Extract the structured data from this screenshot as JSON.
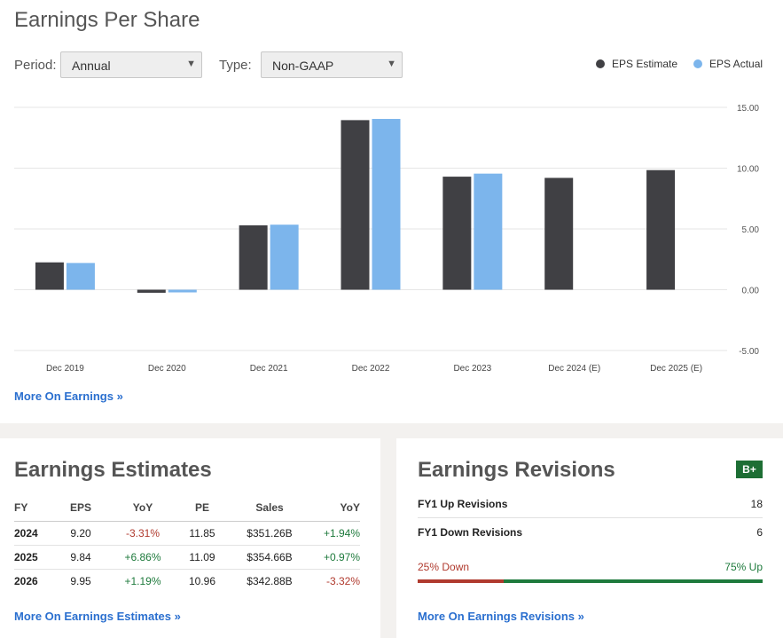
{
  "earnings_per_share": {
    "title": "Earnings Per Share",
    "period_label": "Period:",
    "period_value": "Annual",
    "type_label": "Type:",
    "type_value": "Non-GAAP",
    "legend": [
      {
        "name": "EPS Estimate",
        "color": "#404044"
      },
      {
        "name": "EPS Actual",
        "color": "#7cb5ec"
      }
    ],
    "more_link": "More On Earnings »"
  },
  "chart_data": {
    "type": "bar",
    "title": "",
    "xlabel": "",
    "ylabel": "",
    "categories": [
      "Dec 2019",
      "Dec 2020",
      "Dec 2021",
      "Dec 2022",
      "Dec 2023",
      "Dec 2024 (E)",
      "Dec 2025 (E)"
    ],
    "series": [
      {
        "name": "EPS Estimate",
        "color": "#404044",
        "values": [
          2.25,
          -0.25,
          5.3,
          13.95,
          9.3,
          9.2,
          9.84
        ]
      },
      {
        "name": "EPS Actual",
        "color": "#7cb5ec",
        "values": [
          2.2,
          -0.22,
          5.35,
          14.05,
          9.55,
          null,
          null
        ]
      }
    ],
    "ylim": [
      -5,
      15
    ],
    "yticks": [
      "15.00",
      "10.00",
      "5.00",
      "0.00",
      "-5.00"
    ],
    "ytick_values": [
      15,
      10,
      5,
      0,
      -5
    ],
    "grid": true,
    "legend_position": "top-right"
  },
  "earnings_estimates": {
    "title": "Earnings Estimates",
    "headers": [
      "FY",
      "EPS",
      "YoY",
      "PE",
      "Sales",
      "YoY"
    ],
    "rows": [
      [
        "2024",
        "9.20",
        "-3.31%",
        "11.85",
        "$351.26B",
        "+1.94%"
      ],
      [
        "2025",
        "9.84",
        "+6.86%",
        "11.09",
        "$354.66B",
        "+0.97%"
      ],
      [
        "2026",
        "9.95",
        "+1.19%",
        "10.96",
        "$342.88B",
        "-3.32%"
      ]
    ],
    "more_link": "More On Earnings Estimates »"
  },
  "earnings_revisions": {
    "title": "Earnings Revisions",
    "grade": "B+",
    "up_label": "FY1 Up Revisions",
    "up_value": "18",
    "down_label": "FY1 Down Revisions",
    "down_value": "6",
    "down_pct_label": "25% Down",
    "up_pct_label": "75% Up",
    "down_fraction": 0.25,
    "down_color": "#b03a2e",
    "up_color": "#1e7a3c",
    "more_link": "More On Earnings Revisions »"
  }
}
